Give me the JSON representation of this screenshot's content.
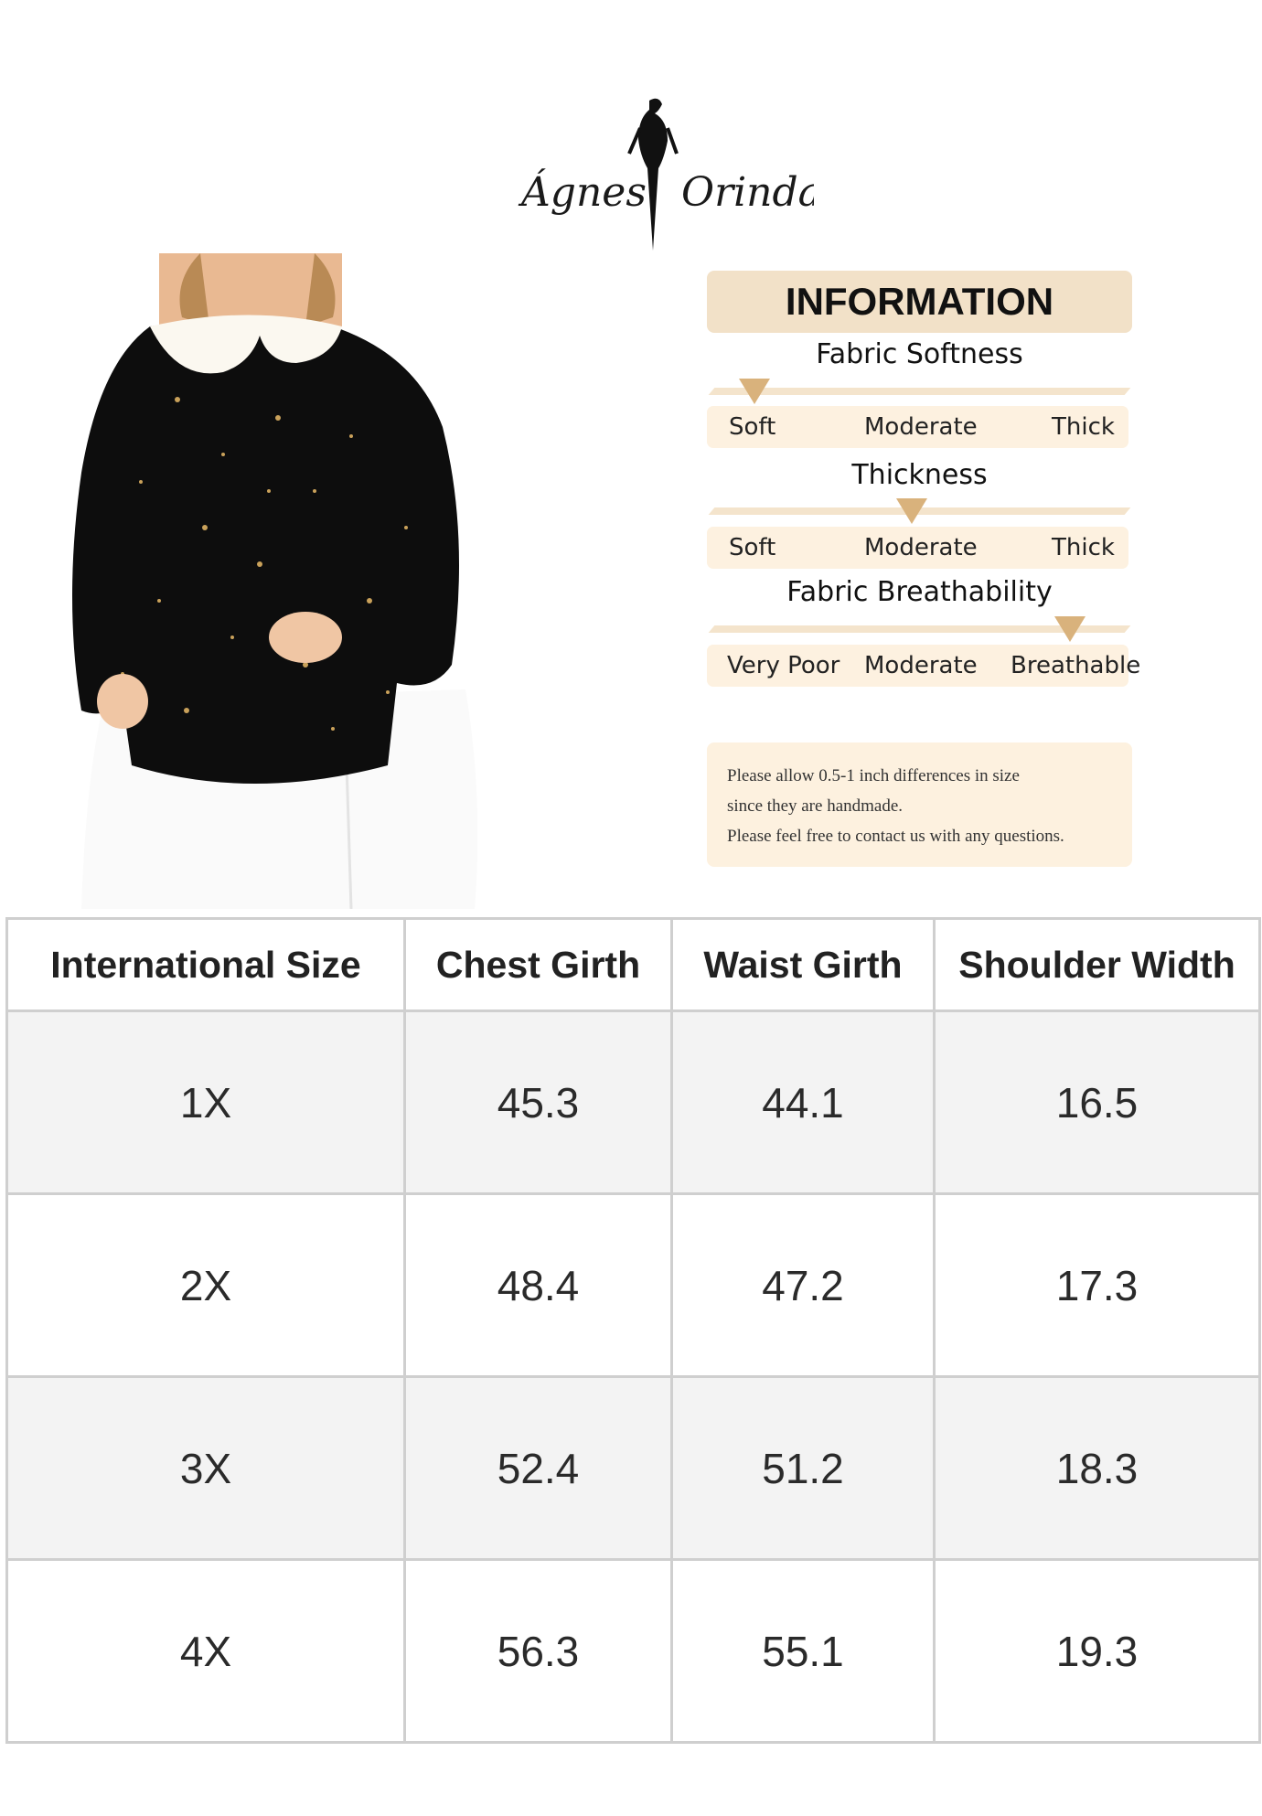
{
  "brand": {
    "logo_text": "Agnes Orinda"
  },
  "info": {
    "title": "INFORMATION",
    "accent_color": "#d9b27c",
    "scales": [
      {
        "title": "Fabric Softness",
        "labels": [
          "Soft",
          "Moderate",
          "Thick"
        ],
        "selected": "Soft",
        "level": 0.1
      },
      {
        "title": "Thickness",
        "labels": [
          "Soft",
          "Moderate",
          "Thick"
        ],
        "selected": "Moderate",
        "level": 0.5
      },
      {
        "title": "Fabric Breathability",
        "labels": [
          "Very Poor",
          "Moderate",
          "Breathable"
        ],
        "selected": "Breathable",
        "level": 0.87
      }
    ],
    "note": [
      "Please allow 0.5-1 inch differences in size",
      "since they are handmade.",
      "Please feel free to contact us with any questions."
    ]
  },
  "size_table": {
    "headers": [
      "International Size",
      "Chest Girth",
      "Waist Girth",
      "Shoulder Width"
    ],
    "rows": [
      [
        "1X",
        "45.3",
        "44.1",
        "16.5"
      ],
      [
        "2X",
        "48.4",
        "47.2",
        "17.3"
      ],
      [
        "3X",
        "52.4",
        "51.2",
        "18.3"
      ],
      [
        "4X",
        "56.3",
        "55.1",
        "19.3"
      ]
    ]
  }
}
